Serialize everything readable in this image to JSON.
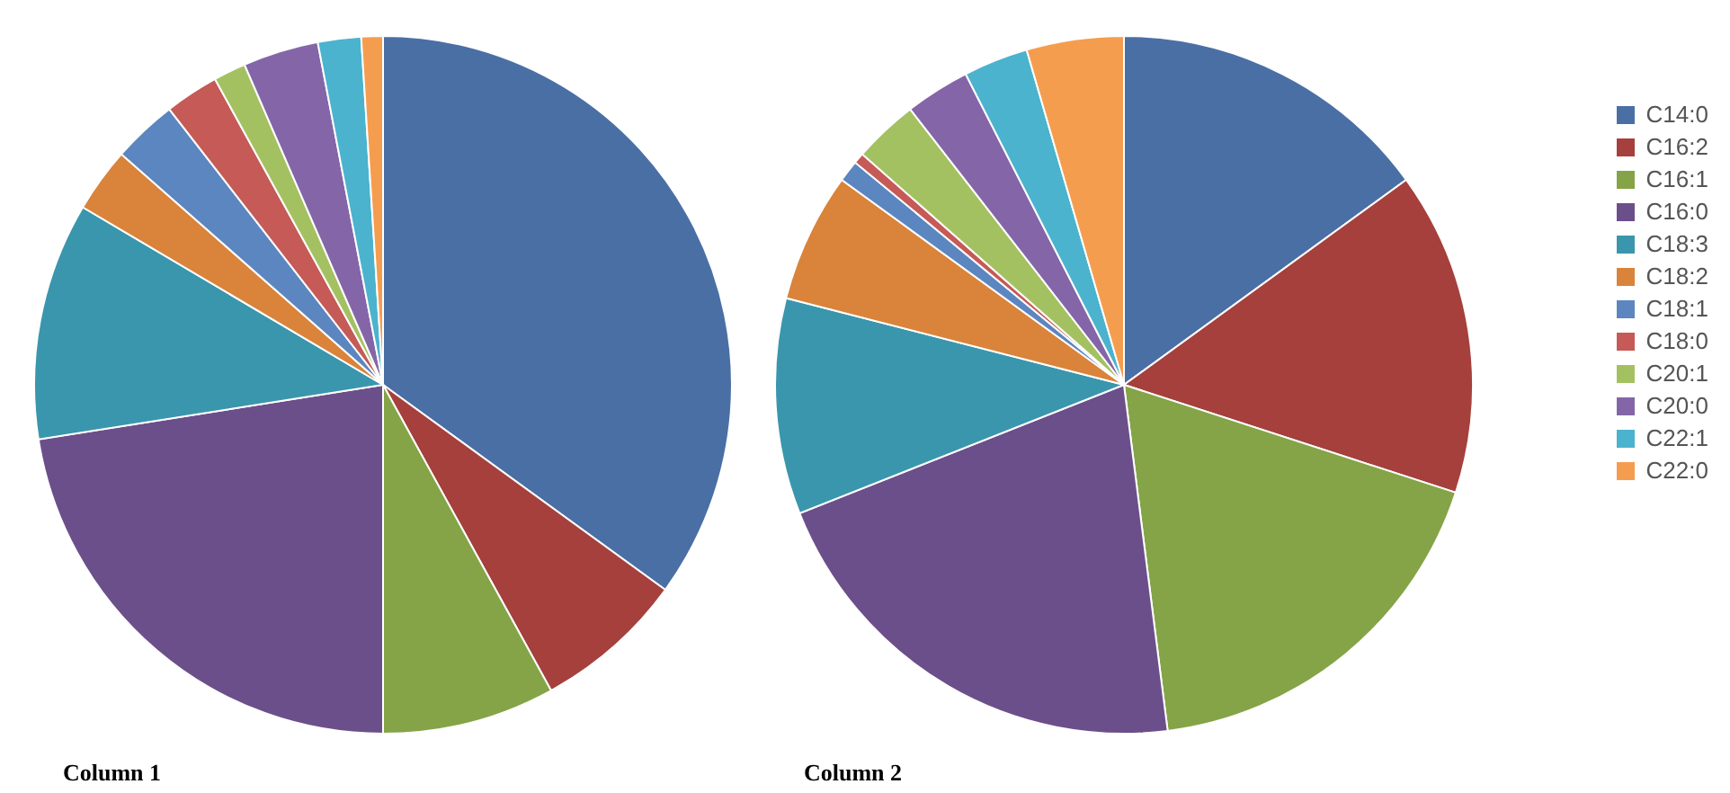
{
  "chart_data": {
    "type": "pie",
    "categories": [
      "C14:0",
      "C16:2",
      "C16:1",
      "C16:0",
      "C18:3",
      "C18:2",
      "C18:1",
      "C18:0",
      "C20:1",
      "C20:0",
      "C22:1",
      "C22:0"
    ],
    "colors": [
      "#4a6fa5",
      "#a5403d",
      "#84a447",
      "#6b4f8a",
      "#3a96ad",
      "#d9843a",
      "#5c86c0",
      "#c55a57",
      "#a4c162",
      "#8466a8",
      "#4bb3cd",
      "#f59d4f"
    ],
    "legend": "right",
    "series": [
      {
        "name": "Column 1",
        "values": [
          35,
          7,
          8,
          22.5,
          11,
          3,
          3,
          2.5,
          1.5,
          3.5,
          2,
          1
        ]
      },
      {
        "name": "Column 2",
        "values": [
          15,
          15,
          18,
          21,
          10,
          6,
          1,
          0.5,
          3,
          3,
          3,
          4.5
        ]
      }
    ]
  }
}
